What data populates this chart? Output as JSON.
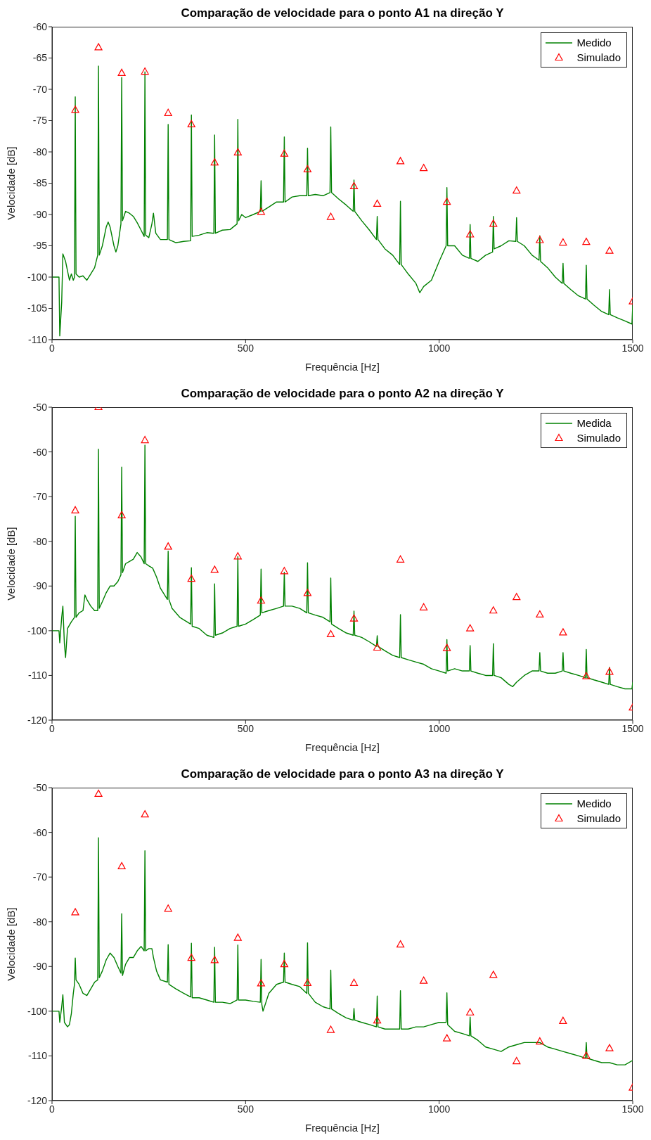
{
  "chart_data": [
    {
      "type": "line",
      "title": "Comparação de velocidade para o ponto A1 na direção Y",
      "xlabel": "Frequência [Hz]",
      "ylabel": "Velocidade [dB]",
      "xlim": [
        0,
        1500
      ],
      "xticks": [
        0,
        500,
        1000,
        1500
      ],
      "ylim": [
        -110,
        -60
      ],
      "yticks": [
        -110,
        -105,
        -100,
        -95,
        -90,
        -85,
        -80,
        -75,
        -70,
        -65,
        -60
      ],
      "legend": "top right",
      "series": [
        {
          "name": "Medido",
          "color": "#008000",
          "line_style": "solid",
          "x": [
            0,
            18,
            20,
            25,
            28,
            35,
            40,
            45,
            50,
            55,
            58,
            60,
            62,
            70,
            80,
            90,
            100,
            110,
            118,
            120,
            122,
            130,
            140,
            145,
            150,
            160,
            165,
            170,
            178,
            180,
            182,
            190,
            200,
            210,
            220,
            230,
            238,
            240,
            242,
            250,
            258,
            262,
            268,
            280,
            298,
            300,
            302,
            320,
            340,
            358,
            360,
            362,
            380,
            400,
            418,
            420,
            422,
            440,
            460,
            478,
            480,
            482,
            490,
            500,
            520,
            538,
            540,
            542,
            560,
            580,
            598,
            600,
            602,
            620,
            640,
            658,
            660,
            662,
            680,
            700,
            718,
            720,
            722,
            740,
            760,
            778,
            780,
            782,
            800,
            820,
            838,
            840,
            842,
            860,
            880,
            898,
            900,
            902,
            920,
            940,
            950,
            960,
            980,
            1000,
            1018,
            1020,
            1022,
            1040,
            1060,
            1078,
            1080,
            1082,
            1100,
            1120,
            1138,
            1140,
            1142,
            1160,
            1180,
            1198,
            1200,
            1202,
            1220,
            1240,
            1258,
            1260,
            1262,
            1280,
            1300,
            1318,
            1320,
            1322,
            1340,
            1360,
            1378,
            1380,
            1382,
            1400,
            1420,
            1438,
            1440,
            1442,
            1460,
            1480,
            1498,
            1500
          ],
          "values": [
            -100,
            -100,
            -109.4,
            -104,
            -96.3,
            -97.5,
            -99,
            -100.5,
            -99.5,
            -100.5,
            -100,
            -71.2,
            -99.5,
            -100,
            -99.8,
            -100.5,
            -99.5,
            -98.5,
            -96.5,
            -66.3,
            -96.5,
            -95,
            -92,
            -91.2,
            -92,
            -95,
            -96,
            -95,
            -91.5,
            -68.1,
            -91,
            -89.5,
            -89.8,
            -90.3,
            -91.3,
            -92.5,
            -93.5,
            -67.2,
            -93.3,
            -93.7,
            -91.5,
            -89.8,
            -93,
            -94,
            -94,
            -75.6,
            -94,
            -94.5,
            -94.3,
            -94.2,
            -74.1,
            -93.5,
            -93.3,
            -92.9,
            -93,
            -77.3,
            -93,
            -92.5,
            -92.4,
            -91.5,
            -74.8,
            -91,
            -90,
            -90.5,
            -90,
            -89.5,
            -84.6,
            -89.5,
            -88.8,
            -88,
            -88,
            -77.6,
            -88,
            -87.2,
            -87,
            -87,
            -79.4,
            -87,
            -86.8,
            -87,
            -86.5,
            -76,
            -86.5,
            -87.5,
            -88.5,
            -89.5,
            -84.5,
            -89.5,
            -91,
            -92.5,
            -94,
            -90.3,
            -94,
            -95.5,
            -96.5,
            -98,
            -87.9,
            -98,
            -99.5,
            -101,
            -102.5,
            -101.5,
            -100.5,
            -97.5,
            -95,
            -85.7,
            -95,
            -95,
            -96.5,
            -97,
            -91.6,
            -97,
            -97.5,
            -96.5,
            -96,
            -90.3,
            -95.5,
            -95,
            -94.2,
            -94.3,
            -90.5,
            -94.3,
            -95,
            -96.5,
            -97.3,
            -93.4,
            -97.5,
            -98.5,
            -100,
            -101,
            -97.8,
            -101,
            -102,
            -103,
            -103.5,
            -98.1,
            -103.5,
            -104.5,
            -105.5,
            -106,
            -102,
            -106,
            -106.5,
            -107,
            -107.5,
            -104.5
          ]
        },
        {
          "name": "Simulado",
          "type": "scatter",
          "color": "#ff0000",
          "marker": "triangle",
          "x": [
            60,
            120,
            180,
            240,
            300,
            360,
            420,
            480,
            540,
            600,
            660,
            720,
            780,
            840,
            900,
            960,
            1020,
            1080,
            1140,
            1200,
            1260,
            1320,
            1380,
            1440,
            1500
          ],
          "values": [
            -73.3,
            -63.3,
            -67.4,
            -67.2,
            -73.8,
            -75.6,
            -81.7,
            -80.1,
            -89.6,
            -80.3,
            -82.8,
            -90.4,
            -85.5,
            -88.3,
            -81.5,
            -82.6,
            -88,
            -93.2,
            -91.5,
            -86.2,
            -94.1,
            -94.5,
            -94.4,
            -95.8,
            -103.9
          ]
        }
      ]
    },
    {
      "type": "line",
      "title": "Comparação de velocidade para o ponto A2 na direção Y",
      "xlabel": "Frequência [Hz]",
      "ylabel": "Velocidade [dB]",
      "xlim": [
        0,
        1500
      ],
      "xticks": [
        0,
        500,
        1000,
        1500
      ],
      "ylim": [
        -120,
        -50
      ],
      "yticks": [
        -120,
        -110,
        -100,
        -90,
        -80,
        -70,
        -60,
        -50
      ],
      "legend": "top right",
      "series": [
        {
          "name": "Medida",
          "color": "#008000",
          "line_style": "solid",
          "x": [
            0,
            18,
            20,
            25,
            28,
            32,
            35,
            40,
            50,
            58,
            60,
            62,
            70,
            80,
            85,
            90,
            100,
            110,
            118,
            120,
            122,
            130,
            140,
            150,
            160,
            170,
            178,
            180,
            182,
            190,
            200,
            210,
            220,
            230,
            238,
            240,
            242,
            250,
            260,
            270,
            280,
            298,
            300,
            302,
            310,
            330,
            358,
            360,
            362,
            380,
            400,
            418,
            420,
            422,
            440,
            460,
            478,
            480,
            482,
            500,
            520,
            538,
            540,
            542,
            560,
            580,
            598,
            600,
            602,
            620,
            640,
            658,
            660,
            662,
            680,
            700,
            718,
            720,
            722,
            740,
            760,
            778,
            780,
            782,
            800,
            820,
            838,
            840,
            842,
            860,
            880,
            898,
            900,
            902,
            920,
            940,
            960,
            980,
            1000,
            1018,
            1020,
            1022,
            1040,
            1060,
            1078,
            1080,
            1082,
            1100,
            1120,
            1138,
            1140,
            1142,
            1160,
            1180,
            1190,
            1200,
            1220,
            1240,
            1258,
            1260,
            1262,
            1280,
            1300,
            1318,
            1320,
            1322,
            1340,
            1360,
            1378,
            1380,
            1382,
            1400,
            1420,
            1438,
            1440,
            1442,
            1460,
            1480,
            1498,
            1500
          ],
          "values": [
            -100,
            -100,
            -102.7,
            -97,
            -94.5,
            -103,
            -106,
            -99.5,
            -98,
            -97,
            -74.4,
            -97,
            -96,
            -95.5,
            -92,
            -93,
            -94.5,
            -95.5,
            -95.5,
            -59.4,
            -95,
            -93.5,
            -91.5,
            -90,
            -90,
            -89,
            -87.5,
            -63.4,
            -87,
            -85,
            -84.5,
            -84,
            -82.5,
            -83.5,
            -85,
            -58.5,
            -85,
            -85.5,
            -86,
            -88,
            -90.5,
            -93,
            -82.2,
            -93,
            -95,
            -97,
            -98.5,
            -85.9,
            -99,
            -99.5,
            -101,
            -101.5,
            -89.5,
            -101,
            -100.5,
            -99.5,
            -99,
            -83.4,
            -99,
            -98.5,
            -97.5,
            -96.5,
            -86.2,
            -96,
            -95.5,
            -95,
            -94.5,
            -86.9,
            -94.5,
            -94.5,
            -95,
            -96,
            -84.8,
            -96,
            -96.5,
            -97,
            -98,
            -88.2,
            -98.5,
            -99.5,
            -100.5,
            -101,
            -95.6,
            -101,
            -101.5,
            -102.5,
            -103.5,
            -101.1,
            -103.5,
            -104.5,
            -105.5,
            -106,
            -96.4,
            -106,
            -106.5,
            -107,
            -107.5,
            -108.5,
            -109,
            -109.5,
            -102,
            -109,
            -108.5,
            -109,
            -109,
            -103.3,
            -109,
            -109.5,
            -110,
            -110,
            -102.9,
            -110,
            -110.5,
            -112,
            -112.5,
            -111.5,
            -110,
            -109,
            -109,
            -104.9,
            -109,
            -109.5,
            -109.5,
            -109,
            -104.9,
            -109,
            -109.5,
            -110,
            -110.5,
            -104.2,
            -110.5,
            -111,
            -111.5,
            -112,
            -108.2,
            -112,
            -112.5,
            -113,
            -113,
            -111.5
          ]
        },
        {
          "name": "Simulado",
          "type": "scatter",
          "color": "#ff0000",
          "marker": "triangle",
          "x": [
            60,
            120,
            180,
            240,
            300,
            360,
            420,
            480,
            540,
            600,
            660,
            720,
            780,
            840,
            900,
            960,
            1020,
            1080,
            1140,
            1200,
            1260,
            1320,
            1380,
            1440,
            1500
          ],
          "values": [
            -73.1,
            -50,
            -74.2,
            -57.4,
            -81.2,
            -88.4,
            -86.4,
            -83.4,
            -93.3,
            -86.7,
            -91.6,
            -100.8,
            -97.3,
            -103.8,
            -84.1,
            -94.8,
            -103.9,
            -99.5,
            -95.5,
            -92.5,
            -96.4,
            -100.4,
            -110.2,
            -109.2,
            -117.2
          ]
        }
      ]
    },
    {
      "type": "line",
      "title": "Comparação de velocidade para o ponto A3 na direção Y",
      "xlabel": "Frequência [Hz]",
      "ylabel": "Velocidade [dB]",
      "xlim": [
        0,
        1500
      ],
      "xticks": [
        0,
        500,
        1000,
        1500
      ],
      "ylim": [
        -120,
        -50
      ],
      "yticks": [
        -120,
        -110,
        -100,
        -90,
        -80,
        -70,
        -60,
        -50
      ],
      "legend": "top right",
      "series": [
        {
          "name": "Medido",
          "color": "#008000",
          "line_style": "solid",
          "x": [
            0,
            18,
            20,
            25,
            28,
            32,
            40,
            45,
            50,
            55,
            58,
            60,
            62,
            70,
            80,
            90,
            100,
            110,
            118,
            120,
            122,
            130,
            140,
            150,
            160,
            170,
            178,
            180,
            182,
            190,
            200,
            210,
            220,
            230,
            238,
            240,
            242,
            250,
            258,
            262,
            270,
            280,
            298,
            300,
            302,
            320,
            340,
            358,
            360,
            362,
            380,
            400,
            418,
            420,
            422,
            440,
            460,
            478,
            480,
            482,
            500,
            520,
            538,
            540,
            542,
            545,
            560,
            580,
            598,
            600,
            602,
            620,
            640,
            658,
            660,
            662,
            680,
            700,
            718,
            720,
            722,
            740,
            760,
            778,
            780,
            782,
            800,
            820,
            838,
            840,
            842,
            860,
            880,
            898,
            900,
            902,
            920,
            940,
            960,
            980,
            1000,
            1018,
            1020,
            1022,
            1040,
            1060,
            1078,
            1080,
            1082,
            1100,
            1120,
            1140,
            1160,
            1180,
            1200,
            1220,
            1240,
            1260,
            1280,
            1300,
            1320,
            1340,
            1360,
            1378,
            1380,
            1382,
            1400,
            1420,
            1440,
            1460,
            1480,
            1500
          ],
          "values": [
            -100,
            -100,
            -102.5,
            -99,
            -96.3,
            -102.5,
            -103.5,
            -103,
            -100.5,
            -96,
            -94,
            -88.1,
            -93,
            -94,
            -96,
            -96.5,
            -95,
            -93.5,
            -93,
            -61.2,
            -92.5,
            -91,
            -88.5,
            -87,
            -88,
            -90,
            -91.5,
            -78.2,
            -92,
            -89.5,
            -88,
            -88,
            -86.5,
            -85.5,
            -86.5,
            -64.1,
            -86.5,
            -86,
            -86,
            -88,
            -91,
            -93,
            -93.5,
            -85.1,
            -94,
            -95,
            -96,
            -96.8,
            -84.8,
            -97,
            -97,
            -97.5,
            -98,
            -85.7,
            -98,
            -98,
            -98.3,
            -97.5,
            -85.2,
            -97.5,
            -97.5,
            -97.8,
            -98,
            -88.4,
            -98.5,
            -100,
            -96,
            -94,
            -93.5,
            -87,
            -93.5,
            -94,
            -94.5,
            -96,
            -84.7,
            -96,
            -98,
            -99,
            -99.5,
            -90.8,
            -99.5,
            -100.5,
            -101.5,
            -102,
            -99.4,
            -102,
            -102.5,
            -103,
            -103.5,
            -96.6,
            -103.5,
            -104,
            -104,
            -104,
            -95.4,
            -104,
            -104,
            -103.5,
            -103.5,
            -103,
            -102.5,
            -102.5,
            -95.9,
            -103,
            -104.5,
            -105,
            -105.5,
            -101.3,
            -105.5,
            -106.5,
            -108,
            -108.5,
            -109,
            -108,
            -107.5,
            -107,
            -107,
            -107,
            -108,
            -108.5,
            -109,
            -109.5,
            -110,
            -110.5,
            -107,
            -110.5,
            -111,
            -111.5,
            -111.5,
            -112,
            -112,
            -111
          ]
        },
        {
          "name": "Simulado",
          "type": "scatter",
          "color": "#ff0000",
          "marker": "triangle",
          "x": [
            60,
            120,
            180,
            240,
            300,
            360,
            420,
            480,
            540,
            600,
            660,
            720,
            780,
            840,
            900,
            960,
            1020,
            1080,
            1140,
            1200,
            1260,
            1320,
            1380,
            1440,
            1500
          ],
          "values": [
            -77.9,
            -51.4,
            -67.6,
            -56,
            -77.1,
            -88.1,
            -88.6,
            -83.6,
            -93.8,
            -89.5,
            -93.7,
            -104.2,
            -93.7,
            -102.1,
            -85.1,
            -93.2,
            -106.1,
            -100.3,
            -91.9,
            -111.2,
            -106.8,
            -102.2,
            -110,
            -108.3,
            -117.1
          ]
        }
      ]
    }
  ]
}
